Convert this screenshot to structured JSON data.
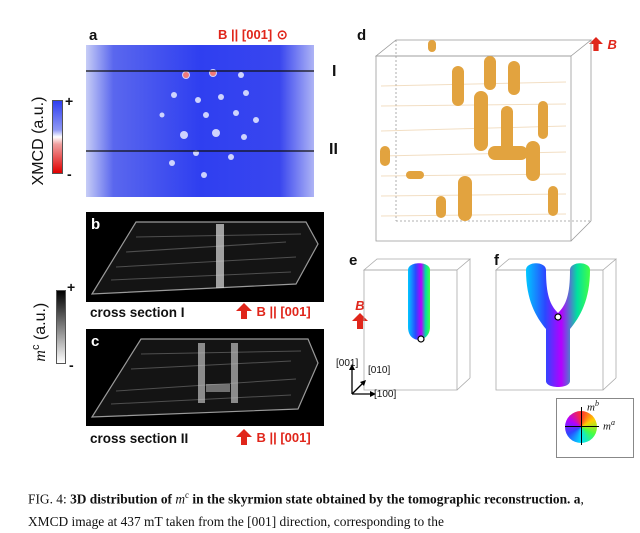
{
  "figure": {
    "panels": {
      "a": {
        "label": "a",
        "field_label": "B || [001]",
        "field_symbol": "⊙",
        "line_I": "I",
        "line_II": "II"
      },
      "b": {
        "label": "b",
        "caption": "cross section I",
        "field_label": "B || [001]"
      },
      "c": {
        "label": "c",
        "caption": "cross section II",
        "field_label": "B || [001]"
      },
      "d": {
        "label": "d",
        "field_label": "B"
      },
      "e": {
        "label": "e",
        "field_label": "B"
      },
      "f": {
        "label": "f"
      }
    },
    "xmcd_scale": {
      "title": "XMCD (a.u.)",
      "plus": "+",
      "minus": "-"
    },
    "mc_scale": {
      "title": "mc (a.u.)",
      "title_main": "m",
      "title_sup": "c",
      "title_unit": " (a.u.)",
      "plus": "+",
      "minus": "-"
    },
    "axes": {
      "z": "[001]",
      "y": "[010]",
      "x": "[100]"
    },
    "color_wheel": {
      "mb": "m",
      "mb_sup": "b",
      "ma": "m",
      "ma_sup": "a"
    },
    "colors": {
      "accent_red": "#e0261b",
      "xmcd_blue": "#2f3ff0",
      "skyrmion_orange": "#e2a33f"
    }
  },
  "caption": {
    "fig": "FIG. 4:",
    "title_part1": "3D distribution of ",
    "title_math": "m",
    "title_sup": "c",
    "title_part2": " in the skyrmion state obtained by the tomographic reconstruction.",
    "panel_a": "a",
    "text": ", XMCD image at 437 mT taken from the [001] direction, corresponding to the"
  }
}
